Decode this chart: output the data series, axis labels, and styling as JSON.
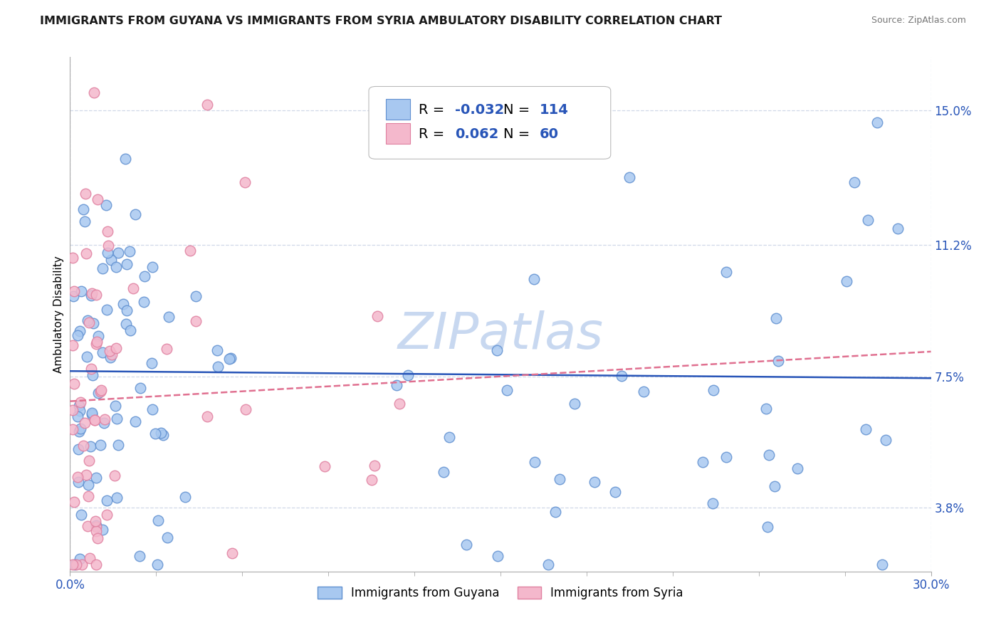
{
  "title": "IMMIGRANTS FROM GUYANA VS IMMIGRANTS FROM SYRIA AMBULATORY DISABILITY CORRELATION CHART",
  "source": "Source: ZipAtlas.com",
  "ylabel": "Ambulatory Disability",
  "xlim": [
    0.0,
    0.3
  ],
  "ylim": [
    0.02,
    0.165
  ],
  "xtick_labels": [
    "0.0%",
    "30.0%"
  ],
  "xtick_positions": [
    0.0,
    0.3
  ],
  "ytick_labels": [
    "3.8%",
    "7.5%",
    "11.2%",
    "15.0%"
  ],
  "ytick_positions": [
    0.038,
    0.075,
    0.112,
    0.15
  ],
  "guyana_color": "#a8c8f0",
  "syria_color": "#f4b8cc",
  "guyana_edge": "#6090d0",
  "syria_edge": "#e080a0",
  "guyana_line_color": "#2855b8",
  "syria_line_color": "#e07090",
  "watermark": "ZIPatlas",
  "legend_R_guyana": "-0.032",
  "legend_N_guyana": "114",
  "legend_R_syria": "0.062",
  "legend_N_syria": "60",
  "legend_label_guyana": "Immigrants from Guyana",
  "legend_label_syria": "Immigrants from Syria",
  "title_fontsize": 11.5,
  "axis_label_fontsize": 11,
  "tick_fontsize": 12,
  "legend_fontsize": 14,
  "watermark_color": "#c8d8f0",
  "background_color": "#ffffff",
  "grid_color": "#d0d8e8"
}
